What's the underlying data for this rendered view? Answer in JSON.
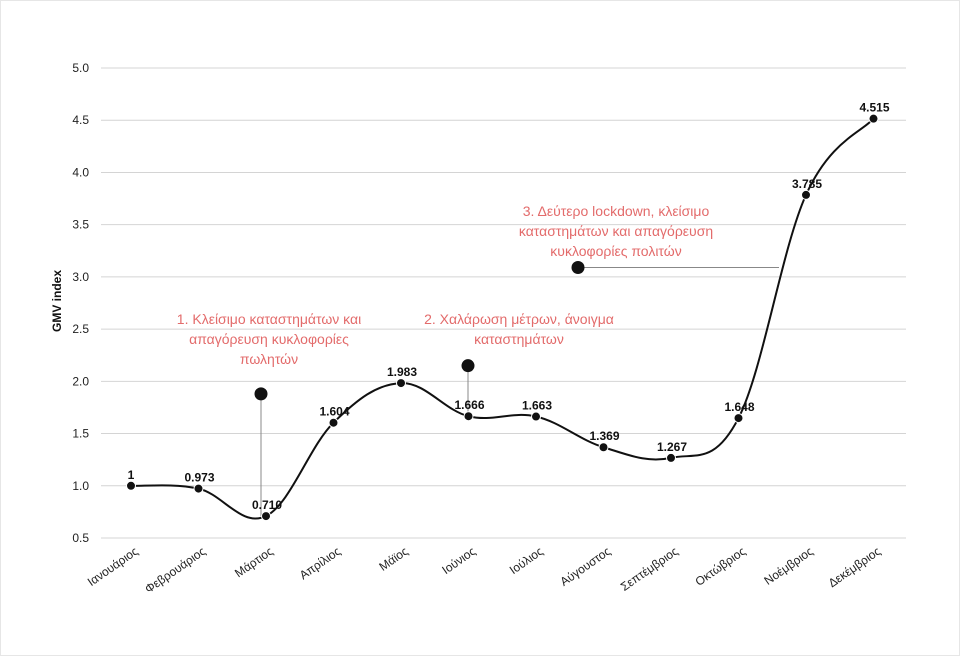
{
  "chart_data": {
    "type": "line",
    "ylabel": "GMV index",
    "xlabel": "",
    "ylim": [
      0.5,
      5.0
    ],
    "yticks": [
      "5.0",
      "4.5",
      "4.0",
      "3.5",
      "3.0",
      "2.5",
      "2.0",
      "1.5",
      "1.0",
      "0.5"
    ],
    "grid": true,
    "categories": [
      "Ιανουάριος",
      "Φεβρουάριος",
      "Μάρτιος",
      "Απρίλιος",
      "Μάϊος",
      "Ιούνιος",
      "Ιούλιος",
      "Αύγουστος",
      "Σεπτέμβριος",
      "Οκτώβριος",
      "Νοέμβριος",
      "Δεκέμβριος"
    ],
    "values": [
      1,
      0.973,
      0.71,
      1.604,
      1.983,
      1.666,
      1.663,
      1.369,
      1.267,
      1.648,
      3.785,
      4.515
    ],
    "data_labels": [
      "1",
      "0.973",
      "0.710",
      "1.604",
      "1.983",
      "1.666",
      "1.663",
      "1.369",
      "1.267",
      "1.648",
      "3.785",
      "4.515"
    ],
    "line_color": "#111111",
    "annotation_color": "#e36b6b",
    "annotations": [
      {
        "lines": [
          "1. Κλείσιμο καταστημάτων και",
          "απαγόρευση κυκλοφορίες",
          "πωλητών"
        ],
        "category": "Μάρτιος",
        "marker_y": 1.88
      },
      {
        "lines": [
          "2. Χαλάρωση μέτρων, άνοιγμα",
          "καταστημάτων"
        ],
        "category": "Ιούνιος",
        "marker_y": 2.15
      },
      {
        "lines": [
          "3. Δεύτερο lockdown, κλείσιμο",
          "καταστημάτων και απαγόρευση",
          "κυκλοφορίες πολιτών"
        ],
        "category": "Νοέμβριος",
        "marker_y": 3.09
      }
    ]
  }
}
